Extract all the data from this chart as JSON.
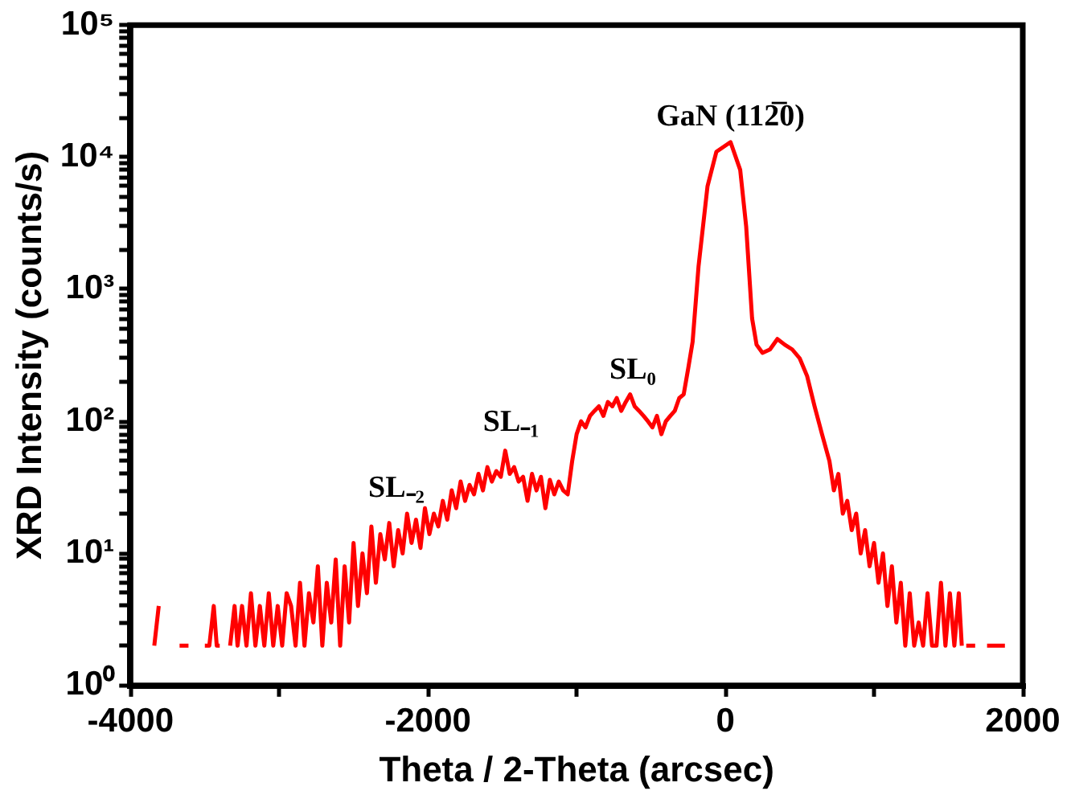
{
  "chart_data": {
    "type": "line",
    "xlabel": "Theta / 2-Theta (arcsec)",
    "ylabel": "XRD Intensity (counts/s)",
    "log": true,
    "grid": false,
    "legend": false,
    "xlim": [
      -4000,
      2000
    ],
    "xticks": [
      -4000,
      {
        "value": -3000,
        "label": null
      },
      -2000,
      {
        "value": -1000,
        "label": null
      },
      0,
      {
        "value": 1000,
        "label": null
      },
      2000
    ],
    "ylim": [
      1,
      100000
    ],
    "yticks": [
      {
        "value": 1,
        "label": "10⁰"
      },
      {
        "value": 2,
        "label": null
      },
      {
        "value": 3,
        "label": null
      },
      {
        "value": 4,
        "label": null
      },
      {
        "value": 5,
        "label": null
      },
      {
        "value": 6,
        "label": null
      },
      {
        "value": 7,
        "label": null
      },
      {
        "value": 8,
        "label": null
      },
      {
        "value": 9,
        "label": null
      },
      {
        "value": 10,
        "label": "10¹"
      },
      {
        "value": 20,
        "label": null
      },
      {
        "value": 30,
        "label": null
      },
      {
        "value": 40,
        "label": null
      },
      {
        "value": 50,
        "label": null
      },
      {
        "value": 60,
        "label": null
      },
      {
        "value": 70,
        "label": null
      },
      {
        "value": 80,
        "label": null
      },
      {
        "value": 90,
        "label": null
      },
      {
        "value": 100,
        "label": "10²"
      },
      {
        "value": 200,
        "label": null
      },
      {
        "value": 300,
        "label": null
      },
      {
        "value": 400,
        "label": null
      },
      {
        "value": 500,
        "label": null
      },
      {
        "value": 600,
        "label": null
      },
      {
        "value": 700,
        "label": null
      },
      {
        "value": 800,
        "label": null
      },
      {
        "value": 900,
        "label": null
      },
      {
        "value": 1000,
        "label": "10³"
      },
      {
        "value": 2000,
        "label": null
      },
      {
        "value": 3000,
        "label": null
      },
      {
        "value": 4000,
        "label": null
      },
      {
        "value": 5000,
        "label": null
      },
      {
        "value": 6000,
        "label": null
      },
      {
        "value": 7000,
        "label": null
      },
      {
        "value": 8000,
        "label": null
      },
      {
        "value": 9000,
        "label": null
      },
      {
        "value": 10000,
        "label": "10⁴"
      },
      {
        "value": 20000,
        "label": null
      },
      {
        "value": 30000,
        "label": null
      },
      {
        "value": 40000,
        "label": null
      },
      {
        "value": 50000,
        "label": null
      },
      {
        "value": 60000,
        "label": null
      },
      {
        "value": 70000,
        "label": null
      },
      {
        "value": 80000,
        "label": null
      },
      {
        "value": 90000,
        "label": null
      },
      {
        "value": 100000,
        "label": "10⁵"
      }
    ],
    "series": [
      {
        "color": "#ff0000",
        "x": [
          -3840,
          -3810,
          -3780,
          -3670,
          -3610,
          -3600,
          -3500,
          -3470,
          -3440,
          -3420,
          -3400,
          -3380,
          -3330,
          -3300,
          -3280,
          -3250,
          -3220,
          -3190,
          -3160,
          -3130,
          -3100,
          -3070,
          -3040,
          -3010,
          -2980,
          -2950,
          -2920,
          -2890,
          -2860,
          -2830,
          -2800,
          -2770,
          -2740,
          -2710,
          -2680,
          -2650,
          -2620,
          -2590,
          -2560,
          -2530,
          -2500,
          -2470,
          -2440,
          -2410,
          -2380,
          -2350,
          -2320,
          -2290,
          -2260,
          -2230,
          -2200,
          -2170,
          -2140,
          -2110,
          -2080,
          -2050,
          -2020,
          -1990,
          -1960,
          -1930,
          -1900,
          -1870,
          -1840,
          -1810,
          -1780,
          -1750,
          -1720,
          -1690,
          -1660,
          -1630,
          -1600,
          -1570,
          -1540,
          -1510,
          -1480,
          -1450,
          -1420,
          -1390,
          -1360,
          -1330,
          -1300,
          -1270,
          -1240,
          -1210,
          -1180,
          -1150,
          -1120,
          -1090,
          -1060,
          -1030,
          -1000,
          -970,
          -940,
          -910,
          -880,
          -850,
          -820,
          -790,
          -760,
          -730,
          -700,
          -670,
          -640,
          -610,
          -580,
          -550,
          -520,
          -490,
          -460,
          -430,
          -400,
          -370,
          -340,
          -310,
          -280,
          -250,
          -220,
          -180,
          -120,
          -60,
          35,
          100,
          140,
          180,
          210,
          250,
          300,
          350,
          400,
          450,
          500,
          550,
          600,
          650,
          700,
          730,
          760,
          790,
          820,
          850,
          880,
          910,
          940,
          970,
          1000,
          1030,
          1060,
          1090,
          1120,
          1150,
          1180,
          1210,
          1240,
          1270,
          1300,
          1330,
          1360,
          1390,
          1420,
          1450,
          1480,
          1510,
          1540,
          1570,
          1590,
          1600,
          1620,
          1680,
          1700,
          1760,
          1880
        ],
        "values": [
          2,
          4,
          null,
          2,
          2,
          null,
          2,
          2,
          4,
          2,
          2,
          null,
          2,
          4,
          2,
          4,
          2,
          5,
          2,
          4,
          2,
          5,
          2,
          4,
          2,
          5,
          4,
          2,
          6,
          2,
          5,
          3,
          8,
          2,
          6,
          3,
          9,
          2,
          8,
          3,
          12,
          4,
          10,
          5,
          16,
          6,
          14,
          9,
          17,
          8,
          15,
          10,
          20,
          12,
          18,
          11,
          22,
          14,
          20,
          16,
          25,
          18,
          30,
          22,
          35,
          25,
          33,
          28,
          40,
          30,
          45,
          35,
          42,
          38,
          60,
          40,
          45,
          35,
          38,
          25,
          40,
          30,
          38,
          22,
          36,
          28,
          35,
          30,
          28,
          50,
          80,
          100,
          90,
          110,
          120,
          130,
          110,
          140,
          130,
          150,
          120,
          140,
          160,
          130,
          120,
          110,
          100,
          90,
          110,
          80,
          100,
          110,
          120,
          150,
          160,
          250,
          400,
          1500,
          6000,
          11000,
          13000,
          8000,
          3000,
          600,
          380,
          330,
          350,
          420,
          380,
          350,
          300,
          220,
          130,
          80,
          50,
          30,
          40,
          20,
          25,
          15,
          20,
          10,
          15,
          8,
          12,
          6,
          10,
          4,
          8,
          3,
          6,
          2,
          5,
          2,
          3,
          2,
          5,
          2,
          2,
          6,
          2,
          5,
          2,
          5,
          2,
          null,
          2,
          2,
          null,
          2,
          2
        ]
      }
    ],
    "annotations": [
      {
        "text": "SL₋₂",
        "x": -2212,
        "y": 20
      },
      {
        "text": "SL₋₁",
        "x": -1440,
        "y": 63
      },
      {
        "text": "SL₀",
        "x": -622,
        "y": 156
      },
      {
        "text": "GaN (112̅0)",
        "x": 35,
        "y": 13000
      }
    ]
  }
}
